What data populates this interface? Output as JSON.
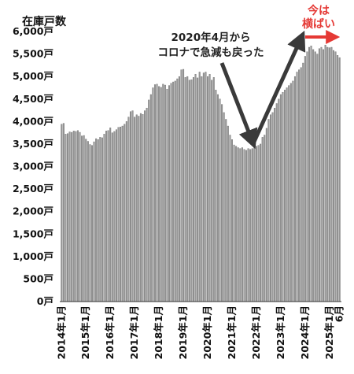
{
  "chart_data": {
    "type": "bar",
    "title": "在庫戸数",
    "ylim": [
      0,
      6000
    ],
    "yticks": [
      "0戸",
      "500戸",
      "1,000戸",
      "1,500戸",
      "2,000戸",
      "2,500戸",
      "3,000戸",
      "3,500戸",
      "4,000戸",
      "4,500戸",
      "5,000戸",
      "5,500戸",
      "6,000戸"
    ],
    "ytick_values": [
      0,
      500,
      1000,
      1500,
      2000,
      2500,
      3000,
      3500,
      4000,
      4500,
      5000,
      5500,
      6000
    ],
    "xtick_labels": [
      "2014年1月",
      "2015年1月",
      "2016年1月",
      "2017年1月",
      "2018年1月",
      "2019年1月",
      "2020年1月",
      "2021年1月",
      "2022年1月",
      "2023年1月",
      "2024年1月",
      "2025年1月"
    ],
    "xtick_index": [
      0,
      12,
      24,
      36,
      48,
      60,
      72,
      84,
      96,
      108,
      120,
      132
    ],
    "last_label": "6月",
    "grid": false,
    "legend": "none",
    "series": [
      {
        "values": [
          3940,
          3960,
          3720,
          3730,
          3770,
          3760,
          3790,
          3780,
          3800,
          3760,
          3680,
          3690,
          3610,
          3560,
          3490,
          3470,
          3550,
          3620,
          3600,
          3650,
          3640,
          3720,
          3790,
          3800,
          3860,
          3750,
          3780,
          3820,
          3870,
          3880,
          3900,
          3940,
          4000,
          4100,
          4220,
          4240,
          4100,
          4150,
          4120,
          4180,
          4160,
          4240,
          4300,
          4480,
          4600,
          4750,
          4820,
          4830,
          4780,
          4760,
          4830,
          4810,
          4720,
          4800,
          4850,
          4880,
          4900,
          4950,
          5000,
          5150,
          5160,
          4980,
          5000,
          4920,
          4930,
          4980,
          5050,
          4970,
          5100,
          5000,
          5080,
          5100,
          5000,
          5050,
          4920,
          4980,
          4700,
          4600,
          4500,
          4380,
          4200,
          4050,
          3900,
          3700,
          3600,
          3480,
          3450,
          3420,
          3400,
          3420,
          3380,
          3360,
          3400,
          3380,
          3400,
          3420,
          3450,
          3470,
          3500,
          3650,
          3700,
          3850,
          4050,
          4150,
          4200,
          4300,
          4400,
          4500,
          4600,
          4650,
          4700,
          4750,
          4800,
          4850,
          4900,
          5000,
          5100,
          5150,
          5200,
          5300,
          5450,
          5550,
          5650,
          5680,
          5600,
          5550,
          5500,
          5620,
          5650,
          5600,
          5700,
          5650,
          5640,
          5650,
          5580,
          5550,
          5470,
          5420
        ]
      }
    ],
    "annotations": [
      {
        "text": [
          "2020年4月から",
          "コロナで急減も戻った"
        ],
        "color": "#222222"
      },
      {
        "text": [
          "今は",
          "横ばい"
        ],
        "color": "#e53935"
      }
    ]
  }
}
